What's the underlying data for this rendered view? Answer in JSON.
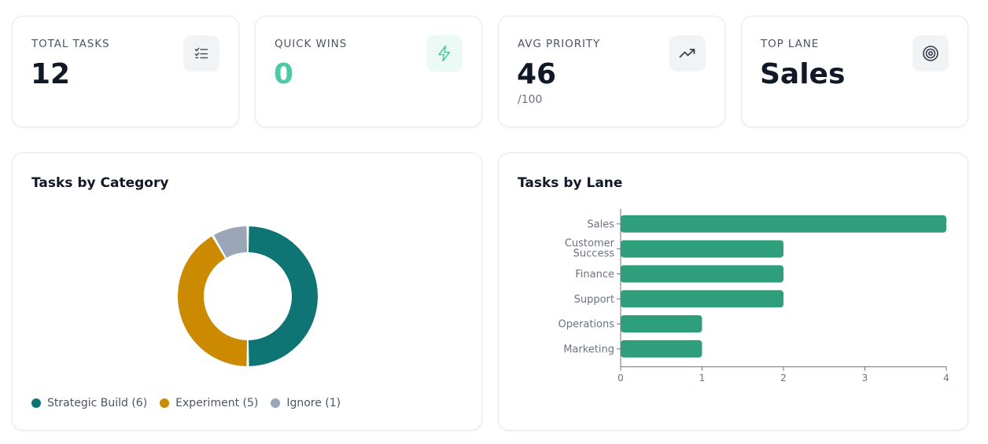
{
  "stats": [
    {
      "label": "TOTAL TASKS",
      "value": "12",
      "sub": "",
      "icon": "checklist-icon"
    },
    {
      "label": "QUICK WINS",
      "value": "0",
      "sub": "",
      "icon": "lightning-icon"
    },
    {
      "label": "AVG PRIORITY",
      "value": "46",
      "sub": "/100",
      "icon": "trending-up-icon"
    },
    {
      "label": "TOP LANE",
      "value": "Sales",
      "sub": "",
      "icon": "target-icon"
    }
  ],
  "colors": {
    "accent": "#4ec9a6",
    "strategic": "#0e7474",
    "experiment": "#cc8a00",
    "ignore": "#9aa5b8",
    "bar": "#2f9e7a"
  },
  "category_chart": {
    "title": "Tasks by Category",
    "legend": [
      {
        "label": "Strategic Build (6)"
      },
      {
        "label": "Experiment (5)"
      },
      {
        "label": "Ignore (1)"
      }
    ]
  },
  "lane_chart": {
    "title": "Tasks by Lane"
  },
  "chart_data": [
    {
      "type": "pie",
      "title": "Tasks by Category",
      "categories": [
        "Strategic Build",
        "Experiment",
        "Ignore"
      ],
      "values": [
        6,
        5,
        1
      ],
      "legend_position": "bottom-left"
    },
    {
      "type": "bar",
      "orientation": "horizontal",
      "title": "Tasks by Lane",
      "categories": [
        "Sales",
        "Customer Success",
        "Finance",
        "Support",
        "Operations",
        "Marketing"
      ],
      "values": [
        4,
        2,
        2,
        2,
        1,
        1
      ],
      "xlim": [
        0,
        4
      ],
      "xticks": [
        "0",
        "1",
        "2",
        "3",
        "4"
      ],
      "grid": false
    }
  ]
}
